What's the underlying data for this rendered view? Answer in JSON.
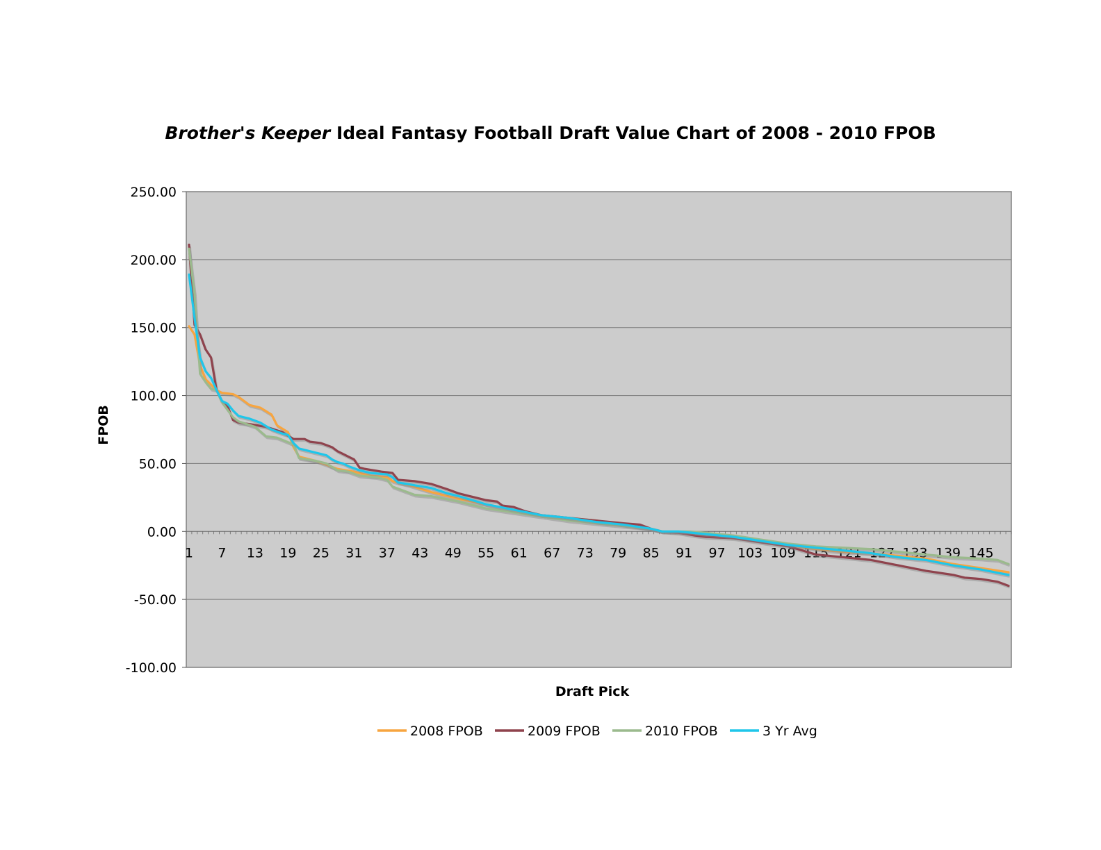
{
  "chart_data": {
    "type": "line",
    "title_italic": "Brother's Keeper",
    "title_rest": " Ideal Fantasy Football Draft Value Chart of 2008 - 2010 FPOB",
    "xlabel": "Draft Pick",
    "ylabel": "FPOB",
    "ylim": [
      -100,
      250
    ],
    "yticks": [
      250,
      200,
      150,
      100,
      50,
      0,
      -50,
      -100
    ],
    "ytick_labels": [
      "250.00",
      "200.00",
      "150.00",
      "100.00",
      "50.00",
      "0.00",
      "-50.00",
      "-100.00"
    ],
    "x_count": 150,
    "xtick_labels": [
      "1",
      "7",
      "13",
      "19",
      "25",
      "31",
      "37",
      "43",
      "49",
      "55",
      "61",
      "67",
      "73",
      "79",
      "85",
      "91",
      "97",
      "103",
      "109",
      "115",
      "121",
      "127",
      "133",
      "139",
      "145"
    ],
    "grid": "horizontal",
    "plot_background": "#cccccc",
    "legend_position": "bottom",
    "series": [
      {
        "name": "2008 FPOB",
        "color": "#f7a540",
        "anchors": [
          [
            1,
            151
          ],
          [
            2,
            145
          ],
          [
            3,
            122
          ],
          [
            4,
            112
          ],
          [
            5,
            108
          ],
          [
            6,
            104
          ],
          [
            7,
            102
          ],
          [
            9,
            101
          ],
          [
            10,
            99
          ],
          [
            12,
            93
          ],
          [
            14,
            91
          ],
          [
            16,
            86
          ],
          [
            17,
            78
          ],
          [
            19,
            73
          ],
          [
            20,
            62
          ],
          [
            21,
            55
          ],
          [
            24,
            52
          ],
          [
            26,
            49
          ],
          [
            28,
            46
          ],
          [
            31,
            44
          ],
          [
            34,
            41
          ],
          [
            37,
            40
          ],
          [
            38,
            37
          ],
          [
            41,
            34
          ],
          [
            45,
            29
          ],
          [
            50,
            24
          ],
          [
            55,
            20
          ],
          [
            60,
            16
          ],
          [
            65,
            12
          ],
          [
            70,
            10
          ],
          [
            75,
            8
          ],
          [
            80,
            5
          ],
          [
            85,
            2
          ],
          [
            87,
            0
          ],
          [
            93,
            -1
          ],
          [
            100,
            -4
          ],
          [
            105,
            -7
          ],
          [
            110,
            -10
          ],
          [
            115,
            -13
          ],
          [
            120,
            -15
          ],
          [
            125,
            -16
          ],
          [
            130,
            -18
          ],
          [
            135,
            -20
          ],
          [
            140,
            -24
          ],
          [
            145,
            -27
          ],
          [
            150,
            -30
          ]
        ]
      },
      {
        "name": "2009 FPOB",
        "color": "#8f434d",
        "anchors": [
          [
            1,
            211
          ],
          [
            2,
            152
          ],
          [
            3,
            145
          ],
          [
            4,
            134
          ],
          [
            5,
            128
          ],
          [
            6,
            104
          ],
          [
            7,
            95
          ],
          [
            8,
            92
          ],
          [
            9,
            82
          ],
          [
            10,
            80
          ],
          [
            12,
            79
          ],
          [
            15,
            77
          ],
          [
            18,
            73
          ],
          [
            20,
            68
          ],
          [
            22,
            68
          ],
          [
            23,
            66
          ],
          [
            25,
            65
          ],
          [
            27,
            62
          ],
          [
            28,
            59
          ],
          [
            30,
            55
          ],
          [
            31,
            53
          ],
          [
            32,
            47
          ],
          [
            33,
            46
          ],
          [
            36,
            44
          ],
          [
            38,
            43
          ],
          [
            39,
            38
          ],
          [
            42,
            37
          ],
          [
            45,
            35
          ],
          [
            48,
            31
          ],
          [
            50,
            28
          ],
          [
            52,
            26
          ],
          [
            55,
            23
          ],
          [
            57,
            22
          ],
          [
            58,
            19
          ],
          [
            60,
            18
          ],
          [
            62,
            15
          ],
          [
            65,
            12
          ],
          [
            70,
            10
          ],
          [
            75,
            8
          ],
          [
            80,
            6
          ],
          [
            83,
            5
          ],
          [
            85,
            2
          ],
          [
            87,
            0
          ],
          [
            90,
            -1
          ],
          [
            93,
            -3
          ],
          [
            95,
            -4
          ],
          [
            100,
            -5
          ],
          [
            105,
            -8
          ],
          [
            110,
            -11
          ],
          [
            115,
            -17
          ],
          [
            120,
            -19
          ],
          [
            125,
            -21
          ],
          [
            130,
            -25
          ],
          [
            135,
            -29
          ],
          [
            140,
            -32
          ],
          [
            142,
            -34
          ],
          [
            145,
            -35
          ],
          [
            148,
            -37
          ],
          [
            150,
            -40
          ]
        ]
      },
      {
        "name": "2010 FPOB",
        "color": "#9bba8d",
        "anchors": [
          [
            1,
            208
          ],
          [
            2,
            175
          ],
          [
            3,
            116
          ],
          [
            4,
            110
          ],
          [
            5,
            105
          ],
          [
            6,
            104
          ],
          [
            7,
            95
          ],
          [
            9,
            84
          ],
          [
            10,
            81
          ],
          [
            13,
            77
          ],
          [
            15,
            70
          ],
          [
            17,
            69
          ],
          [
            20,
            64
          ],
          [
            21,
            54
          ],
          [
            24,
            52
          ],
          [
            26,
            50
          ],
          [
            28,
            45
          ],
          [
            30,
            44
          ],
          [
            32,
            41
          ],
          [
            35,
            40
          ],
          [
            37,
            38
          ],
          [
            38,
            33
          ],
          [
            40,
            30
          ],
          [
            42,
            27
          ],
          [
            45,
            26
          ],
          [
            50,
            22
          ],
          [
            55,
            17
          ],
          [
            60,
            14
          ],
          [
            65,
            11
          ],
          [
            70,
            8
          ],
          [
            75,
            6
          ],
          [
            80,
            4
          ],
          [
            85,
            2
          ],
          [
            87,
            0
          ],
          [
            92,
            0
          ],
          [
            95,
            -1
          ],
          [
            100,
            -3
          ],
          [
            105,
            -6
          ],
          [
            110,
            -9
          ],
          [
            115,
            -11
          ],
          [
            120,
            -12
          ],
          [
            125,
            -13
          ],
          [
            130,
            -15
          ],
          [
            135,
            -17
          ],
          [
            140,
            -19
          ],
          [
            145,
            -20
          ],
          [
            148,
            -21
          ],
          [
            150,
            -24
          ]
        ]
      },
      {
        "name": "3 Yr Avg",
        "color": "#1fc6ea",
        "anchors": [
          [
            1,
            189
          ],
          [
            2,
            157
          ],
          [
            3,
            128
          ],
          [
            4,
            118
          ],
          [
            5,
            113
          ],
          [
            6,
            104
          ],
          [
            7,
            96
          ],
          [
            8,
            94
          ],
          [
            9,
            89
          ],
          [
            10,
            85
          ],
          [
            12,
            83
          ],
          [
            14,
            80
          ],
          [
            16,
            75
          ],
          [
            18,
            72
          ],
          [
            19,
            71
          ],
          [
            20,
            65
          ],
          [
            21,
            61
          ],
          [
            23,
            59
          ],
          [
            25,
            57
          ],
          [
            26,
            56
          ],
          [
            27,
            53
          ],
          [
            28,
            51
          ],
          [
            29,
            50
          ],
          [
            30,
            48
          ],
          [
            32,
            45
          ],
          [
            34,
            43
          ],
          [
            37,
            42
          ],
          [
            38,
            40
          ],
          [
            39,
            36
          ],
          [
            42,
            34
          ],
          [
            45,
            32
          ],
          [
            48,
            28
          ],
          [
            50,
            26
          ],
          [
            55,
            20
          ],
          [
            60,
            16
          ],
          [
            65,
            12
          ],
          [
            70,
            10
          ],
          [
            75,
            7
          ],
          [
            80,
            5
          ],
          [
            85,
            2
          ],
          [
            87,
            0
          ],
          [
            90,
            0
          ],
          [
            95,
            -2
          ],
          [
            100,
            -4
          ],
          [
            105,
            -7
          ],
          [
            110,
            -10
          ],
          [
            115,
            -12
          ],
          [
            120,
            -14
          ],
          [
            125,
            -16
          ],
          [
            130,
            -19
          ],
          [
            135,
            -21
          ],
          [
            140,
            -25
          ],
          [
            145,
            -28
          ],
          [
            150,
            -32
          ]
        ]
      }
    ]
  }
}
